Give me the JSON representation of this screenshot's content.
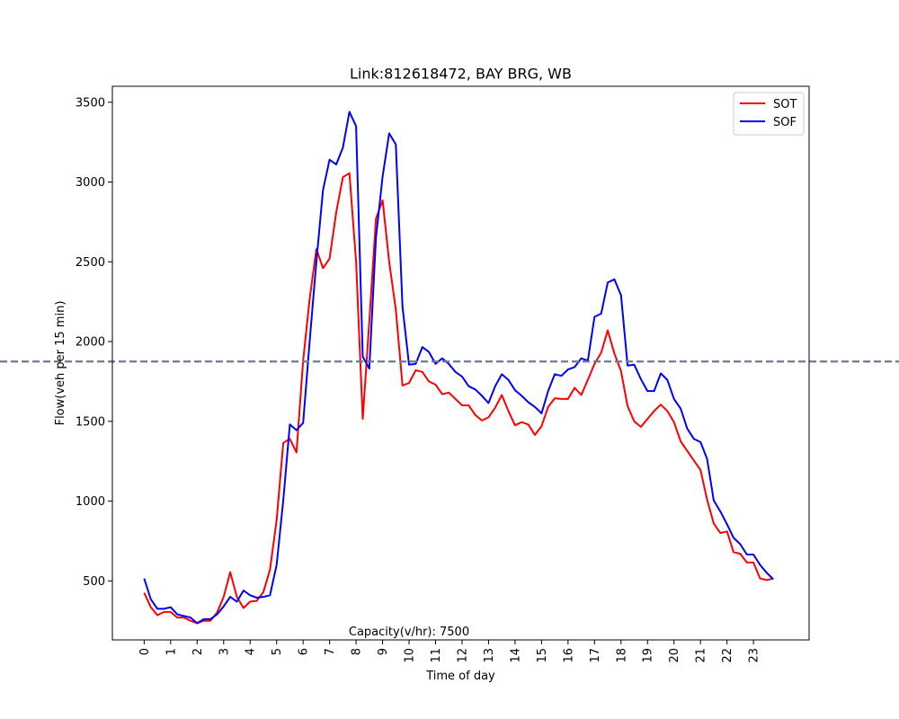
{
  "chart_data": {
    "type": "line",
    "title": "Link:812618472, BAY BRG, WB",
    "xlabel": "Time of day",
    "ylabel": "Flow(veh per 15 min)",
    "xlim": [
      -1.2,
      25.1
    ],
    "ylim": [
      130,
      3600
    ],
    "xticks": [
      0,
      1,
      2,
      3,
      4,
      5,
      6,
      7,
      8,
      9,
      10,
      11,
      12,
      13,
      14,
      15,
      16,
      17,
      18,
      19,
      20,
      21,
      22,
      23
    ],
    "yticks": [
      500,
      1000,
      1500,
      2000,
      2500,
      3000,
      3500
    ],
    "capacity_line": 1875,
    "capacity_label": "Capacity(v/hr): 7500",
    "legend_position": "top-right",
    "grid": false,
    "x": [
      0,
      0.25,
      0.5,
      0.75,
      1,
      1.25,
      1.5,
      1.75,
      2,
      2.25,
      2.5,
      2.75,
      3,
      3.25,
      3.5,
      3.75,
      4,
      4.25,
      4.5,
      4.75,
      5,
      5.25,
      5.5,
      5.75,
      6,
      6.25,
      6.5,
      6.75,
      7,
      7.25,
      7.5,
      7.75,
      8,
      8.25,
      8.5,
      8.75,
      9,
      9.25,
      9.5,
      9.75,
      10,
      10.25,
      10.5,
      10.75,
      11,
      11.25,
      11.5,
      11.75,
      12,
      12.25,
      12.5,
      12.75,
      13,
      13.25,
      13.5,
      13.75,
      14,
      14.25,
      14.5,
      14.75,
      15,
      15.25,
      15.5,
      15.75,
      16,
      16.25,
      16.5,
      16.75,
      17,
      17.25,
      17.5,
      17.75,
      18,
      18.25,
      18.5,
      18.75,
      19,
      19.25,
      19.5,
      19.75,
      20,
      20.25,
      20.5,
      20.75,
      21,
      21.25,
      21.5,
      21.75,
      22,
      22.25,
      22.5,
      22.75,
      23,
      23.25,
      23.5,
      23.75
    ],
    "series": [
      {
        "name": "SOT",
        "color": "#ff0000",
        "values": [
          425,
          335,
          285,
          305,
          305,
          270,
          270,
          250,
          235,
          250,
          250,
          300,
          400,
          555,
          400,
          330,
          370,
          375,
          430,
          570,
          880,
          1365,
          1390,
          1305,
          1880,
          2270,
          2580,
          2460,
          2520,
          2810,
          3030,
          3055,
          2500,
          1515,
          2125,
          2770,
          2885,
          2500,
          2200,
          1725,
          1740,
          1820,
          1810,
          1750,
          1730,
          1670,
          1680,
          1640,
          1600,
          1600,
          1540,
          1505,
          1525,
          1585,
          1665,
          1565,
          1475,
          1495,
          1480,
          1415,
          1470,
          1590,
          1645,
          1640,
          1640,
          1710,
          1665,
          1760,
          1860,
          1930,
          2070,
          1925,
          1815,
          1595,
          1500,
          1465,
          1515,
          1565,
          1605,
          1565,
          1495,
          1375,
          1315,
          1255,
          1195,
          1010,
          860,
          800,
          810,
          680,
          670,
          615,
          615,
          515,
          505,
          515
        ]
      },
      {
        "name": "SOF",
        "color": "#0000ff",
        "values": [
          515,
          385,
          325,
          325,
          335,
          290,
          280,
          270,
          235,
          260,
          260,
          290,
          340,
          400,
          370,
          440,
          410,
          395,
          400,
          410,
          600,
          1005,
          1480,
          1445,
          1490,
          2005,
          2500,
          2950,
          3140,
          3110,
          3215,
          3440,
          3350,
          1905,
          1830,
          2650,
          3035,
          3305,
          3235,
          2220,
          1855,
          1860,
          1965,
          1935,
          1860,
          1895,
          1860,
          1810,
          1780,
          1720,
          1700,
          1660,
          1615,
          1720,
          1795,
          1760,
          1695,
          1660,
          1620,
          1590,
          1550,
          1690,
          1795,
          1785,
          1825,
          1840,
          1895,
          1880,
          2155,
          2175,
          2370,
          2390,
          2290,
          1850,
          1855,
          1765,
          1690,
          1690,
          1800,
          1760,
          1640,
          1580,
          1455,
          1390,
          1370,
          1265,
          1005,
          935,
          855,
          770,
          730,
          665,
          665,
          600,
          550,
          510
        ]
      }
    ]
  }
}
